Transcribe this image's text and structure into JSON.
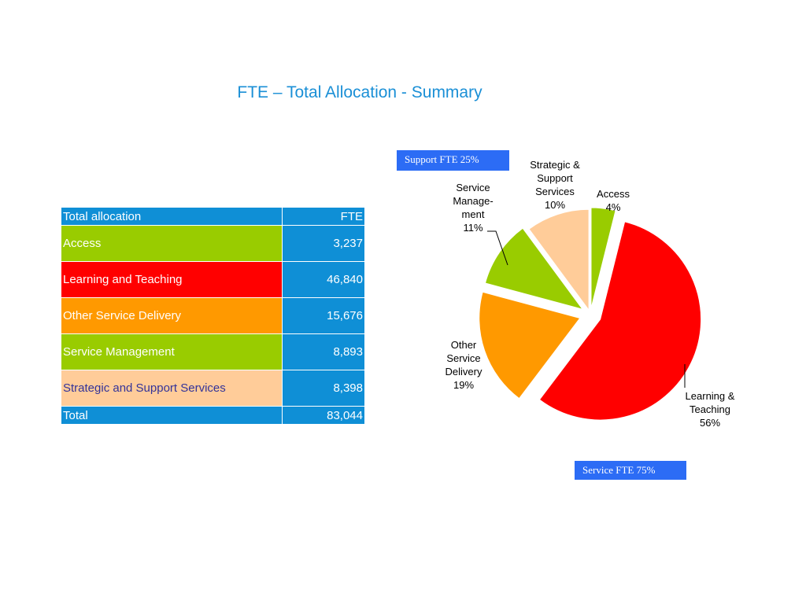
{
  "title": "FTE – Total Allocation - Summary",
  "table": {
    "header": [
      "Total allocation",
      "FTE"
    ],
    "rows": [
      {
        "label": "Access",
        "value": "3,237",
        "color": "#99cc00",
        "text_color": "#ffffff"
      },
      {
        "label": "Learning and Teaching",
        "value": "46,840",
        "color": "#ff0000",
        "text_color": "#ffffff"
      },
      {
        "label": "Other Service Delivery",
        "value": "15,676",
        "color": "#ff9900",
        "text_color": "#ffffff"
      },
      {
        "label": "Service Management",
        "value": "8,893",
        "color": "#99cc00",
        "text_color": "#ffffff"
      },
      {
        "label": "Strategic and Support Services",
        "value": "8,398",
        "color": "#ffcc99",
        "text_color": "#333399"
      }
    ],
    "footer": [
      "Total",
      "83,044"
    ]
  },
  "boxes": {
    "support": "Support FTE 25%",
    "service": "Service FTE 75%"
  },
  "chart_data": {
    "type": "pie",
    "title": "",
    "slices": [
      {
        "name": "Access",
        "percent": 4,
        "value": 3237,
        "color": "#99cc00",
        "label_lines": [
          "Access",
          "4%"
        ]
      },
      {
        "name": "Learning & Teaching",
        "percent": 56,
        "value": 46840,
        "color": "#ff0000",
        "label_lines": [
          "Learning  &",
          "Teaching",
          "56%"
        ]
      },
      {
        "name": "Other Service Delivery",
        "percent": 19,
        "value": 15676,
        "color": "#ff9900",
        "label_lines": [
          "Other",
          "Service",
          "Delivery",
          "19%"
        ]
      },
      {
        "name": "Service Management",
        "percent": 11,
        "value": 8893,
        "color": "#99cc00",
        "label_lines": [
          "Service",
          "Manage-",
          "ment",
          "11%"
        ]
      },
      {
        "name": "Strategic & Support Services",
        "percent": 10,
        "value": 8398,
        "color": "#ffcc99",
        "label_lines": [
          "Strategic &",
          "Support",
          "Services",
          "10%"
        ]
      }
    ]
  }
}
